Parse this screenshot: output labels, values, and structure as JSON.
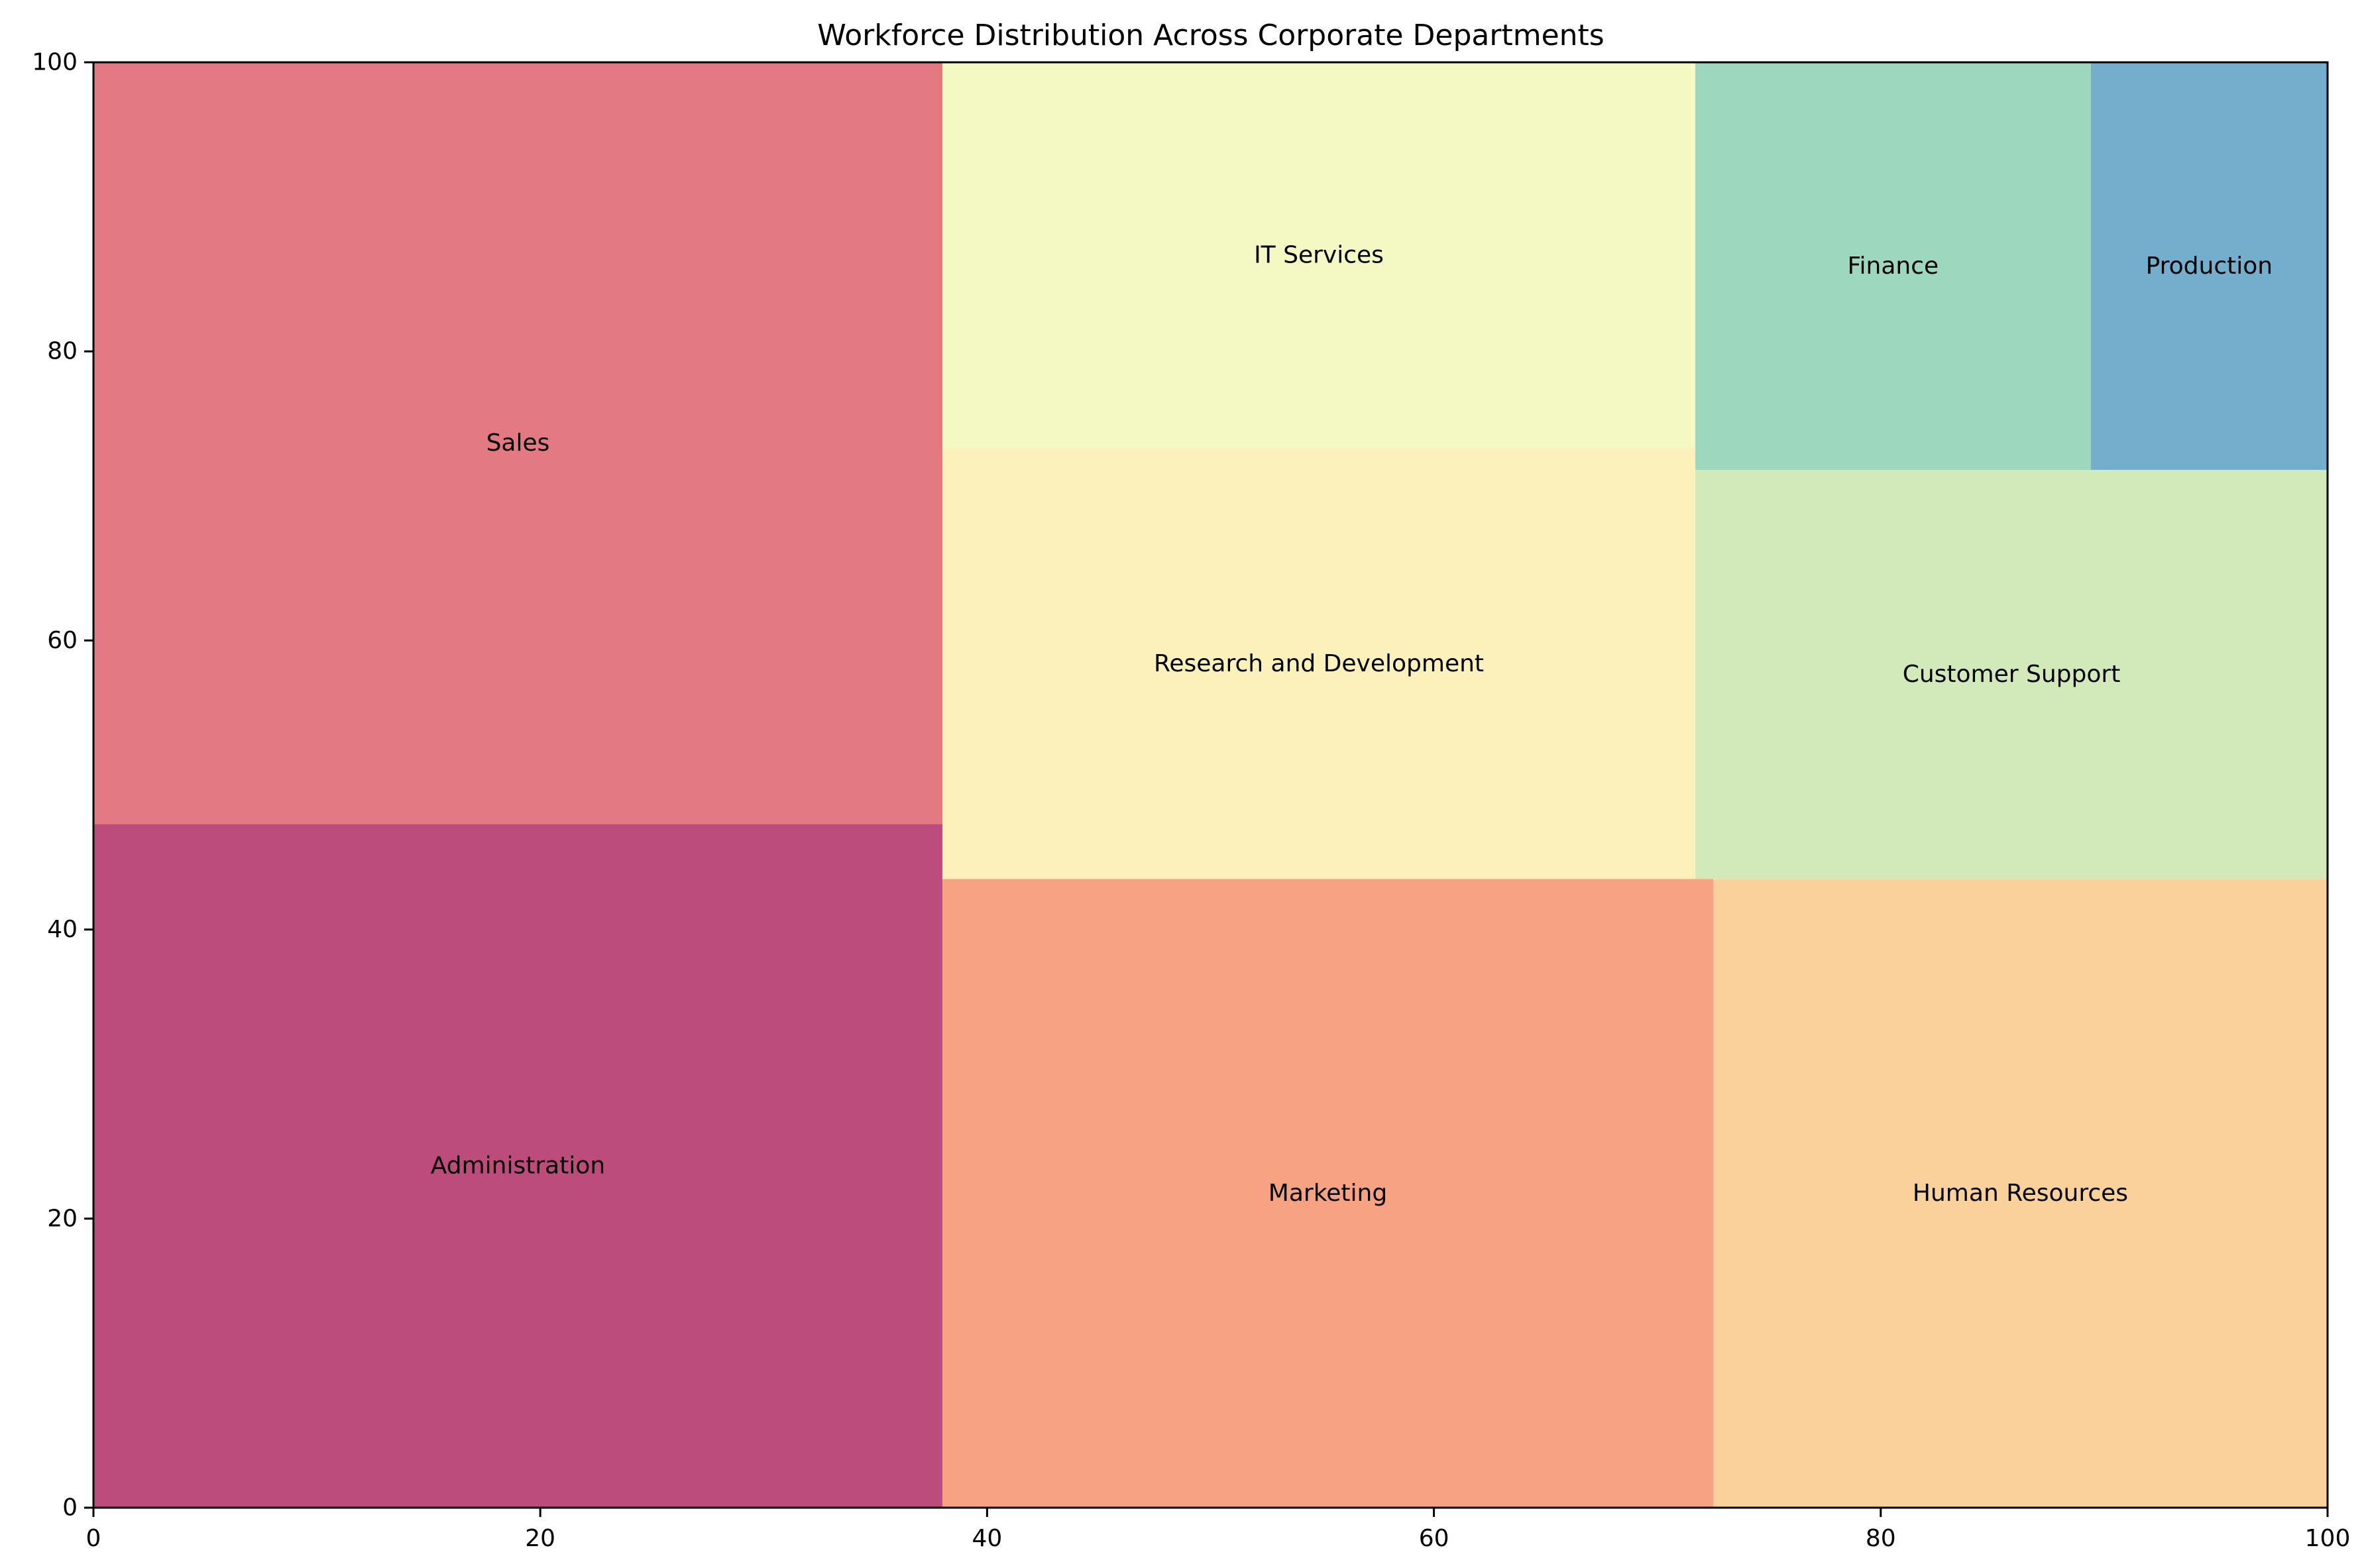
{
  "chart_data": {
    "type": "treemap",
    "title": "Workforce Distribution Across Corporate Departments",
    "xlabel": "",
    "ylabel": "",
    "xlim": [
      0,
      100
    ],
    "ylim": [
      0,
      100
    ],
    "x_ticks": [
      0,
      20,
      40,
      60,
      80,
      100
    ],
    "y_ticks": [
      0,
      20,
      40,
      60,
      80,
      100
    ],
    "grid": false,
    "rectangles": [
      {
        "label": "Administration",
        "x": 0,
        "y": 0,
        "dx": 38.0,
        "dy": 47.3,
        "color": "#bb4c7b"
      },
      {
        "label": "Sales",
        "x": 0,
        "y": 47.3,
        "dx": 38.0,
        "dy": 52.7,
        "color": "#e37a81"
      },
      {
        "label": "Marketing",
        "x": 38.0,
        "y": 0,
        "dx": 34.5,
        "dy": 43.5,
        "color": "#f6a283"
      },
      {
        "label": "Research and Development",
        "x": 38.0,
        "y": 43.5,
        "dx": 33.7,
        "dy": 29.8,
        "color": "#fdf1bb"
      },
      {
        "label": "IT Services",
        "x": 38.0,
        "y": 73.3,
        "dx": 33.7,
        "dy": 26.7,
        "color": "#f4f8c2"
      },
      {
        "label": "Human Resources",
        "x": 72.5,
        "y": 0,
        "dx": 27.5,
        "dy": 43.5,
        "color": "#fad09b"
      },
      {
        "label": "Customer Support",
        "x": 71.7,
        "y": 43.5,
        "dx": 28.3,
        "dy": 28.3,
        "color": "#d2eab9"
      },
      {
        "label": "Finance",
        "x": 71.7,
        "y": 71.8,
        "dx": 17.7,
        "dy": 28.2,
        "color": "#9dd7bd"
      },
      {
        "label": "Production",
        "x": 89.4,
        "y": 71.8,
        "dx": 10.6,
        "dy": 28.2,
        "color": "#73aecd"
      }
    ]
  }
}
